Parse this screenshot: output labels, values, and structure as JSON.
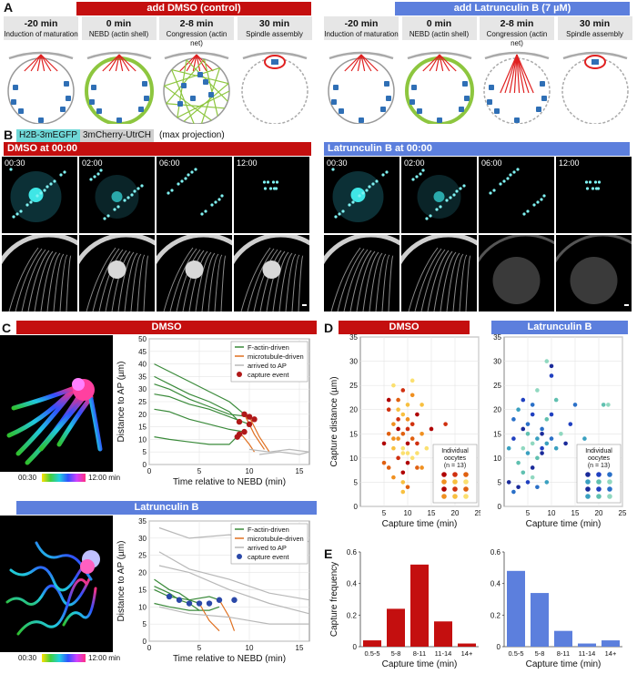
{
  "panel_letters": {
    "a": "A",
    "b": "B",
    "c": "C",
    "d": "D",
    "e": "E"
  },
  "colors": {
    "dmso": "#c40f0f",
    "latb": "#5c7fdd",
    "actin": "#8dc63f",
    "chrom": "#2f6fb5",
    "spindle": "#e02020"
  },
  "panel_a": {
    "dmso_header": "add DMSO (control)",
    "latb_header": "add Latrunculin B (7 µM)",
    "stages": [
      {
        "time": "-20 min",
        "desc": "Induction of maturation"
      },
      {
        "time": "0 min",
        "desc": "NEBD (actin shell)"
      },
      {
        "time": "2-8 min",
        "desc": "Congression (actin net)"
      },
      {
        "time": "30 min",
        "desc": "Spindle assembly"
      }
    ]
  },
  "panel_b": {
    "label_h2b": "H2B-3mEGFP",
    "label_utrch": "3mCherry-UtrCH",
    "label_proj": "(max projection)",
    "dmso_title": "DMSO at 00:00",
    "latb_title": "Latrunculin B at 00:00",
    "timepoints": [
      "00:30",
      "02:00",
      "06:00",
      "12:00"
    ]
  },
  "panel_c": {
    "dmso_title": "DMSO",
    "latb_title": "Latrunculin B",
    "colorbar_start": "00:30",
    "colorbar_end": "12:00 min",
    "xlabel": "Time relative to NEBD (min)",
    "ylabel": "Distance to AP (µm)",
    "legend": [
      "F-actin-driven",
      "microtubule-driven",
      "arrived to AP",
      "capture event"
    ]
  },
  "panel_d": {
    "dmso_title": "DMSO",
    "latb_title": "Latrunculin B",
    "xlabel": "Capture time (min)",
    "ylabel": "Capture distance (µm)",
    "legend_title": "Individual oocytes",
    "legend_n": "(n = 13)"
  },
  "panel_e": {
    "xlabel": "Capture time (min)",
    "ylabel": "Capture frequency"
  },
  "chart_data": [
    {
      "type": "line",
      "title": "DMSO",
      "xlabel": "Time relative to NEBD (min)",
      "ylabel": "Distance to AP (µm)",
      "xlim": [
        0,
        16
      ],
      "ylim": [
        0,
        50
      ],
      "xticks": [
        0,
        5,
        10,
        15
      ],
      "yticks": [
        0,
        5,
        10,
        15,
        20,
        25,
        30,
        35,
        40,
        45,
        50
      ],
      "series": [
        {
          "name": "F-actin-driven",
          "x": [
            0.5,
            2,
            4,
            6,
            8,
            9.5
          ],
          "y": [
            40,
            37,
            33,
            29,
            25,
            20
          ]
        },
        {
          "name": "F-actin-driven",
          "x": [
            0.5,
            2,
            4,
            6,
            8,
            9
          ],
          "y": [
            35,
            32,
            28,
            25,
            21,
            17
          ]
        },
        {
          "name": "F-actin-driven",
          "x": [
            0.5,
            2,
            4,
            6,
            8,
            10
          ],
          "y": [
            32,
            30,
            26,
            23,
            20,
            19
          ]
        },
        {
          "name": "F-actin-driven",
          "x": [
            0.5,
            2,
            4,
            6,
            8,
            10
          ],
          "y": [
            28,
            27,
            24,
            22,
            19,
            16
          ]
        },
        {
          "name": "F-actin-driven",
          "x": [
            0.5,
            2,
            4,
            6,
            8,
            9.5
          ],
          "y": [
            22,
            21,
            18,
            16,
            14,
            13
          ]
        },
        {
          "name": "F-actin-driven",
          "x": [
            0.5,
            2,
            4,
            6,
            8,
            9
          ],
          "y": [
            11,
            10,
            9,
            8,
            8,
            12
          ]
        },
        {
          "name": "microtubule-driven",
          "x": [
            9.5,
            10.5,
            11.5
          ],
          "y": [
            20,
            12,
            6
          ]
        },
        {
          "name": "microtubule-driven",
          "x": [
            10,
            11,
            12
          ],
          "y": [
            19,
            11,
            5
          ]
        },
        {
          "name": "microtubule-driven",
          "x": [
            9,
            10,
            10.5
          ],
          "y": [
            13,
            8,
            5
          ]
        },
        {
          "name": "arrived to AP",
          "x": [
            10,
            12,
            14,
            16
          ],
          "y": [
            6,
            5,
            6,
            5
          ]
        },
        {
          "name": "arrived to AP",
          "x": [
            11,
            13,
            15,
            16
          ],
          "y": [
            4,
            5,
            4,
            5
          ]
        }
      ],
      "points": {
        "name": "capture event",
        "x": [
          9.5,
          9,
          10,
          10,
          9.5,
          9,
          8.8,
          10.5
        ],
        "y": [
          20,
          17,
          19,
          16,
          13,
          12,
          11,
          18
        ]
      }
    },
    {
      "type": "line",
      "title": "Latrunculin B",
      "xlabel": "Time relative to NEBD (min)",
      "ylabel": "Distance to AP (µm)",
      "xlim": [
        0,
        16
      ],
      "ylim": [
        0,
        35
      ],
      "xticks": [
        0,
        5,
        10,
        15
      ],
      "yticks": [
        0,
        5,
        10,
        15,
        20,
        25,
        30,
        35
      ],
      "series": [
        {
          "name": "F-actin-driven",
          "x": [
            0.5,
            2,
            3,
            4,
            5
          ],
          "y": [
            18,
            15,
            14,
            12,
            11
          ]
        },
        {
          "name": "F-actin-driven",
          "x": [
            0.5,
            2,
            3,
            4,
            5
          ],
          "y": [
            16,
            14,
            12,
            11,
            9
          ]
        },
        {
          "name": "F-actin-driven",
          "x": [
            0.5,
            2,
            4,
            6,
            7
          ],
          "y": [
            15,
            13,
            12,
            13,
            12
          ]
        },
        {
          "name": "F-actin-driven",
          "x": [
            0.5,
            2,
            4,
            6,
            7
          ],
          "y": [
            11,
            10,
            9,
            9,
            10
          ]
        },
        {
          "name": "microtubule-driven",
          "x": [
            5,
            6,
            7
          ],
          "y": [
            11,
            6,
            3
          ]
        },
        {
          "name": "microtubule-driven",
          "x": [
            7,
            8,
            8.5
          ],
          "y": [
            12,
            7,
            3
          ]
        },
        {
          "name": "arrived to AP",
          "x": [
            1,
            4,
            8,
            12,
            16
          ],
          "y": [
            33,
            30,
            31,
            30,
            29
          ]
        },
        {
          "name": "arrived to AP",
          "x": [
            1,
            4,
            8,
            12,
            16
          ],
          "y": [
            26,
            21,
            18,
            14,
            12
          ]
        },
        {
          "name": "arrived to AP",
          "x": [
            1,
            4,
            8,
            12,
            16
          ],
          "y": [
            22,
            20,
            15,
            11,
            8
          ]
        },
        {
          "name": "arrived to AP",
          "x": [
            1,
            4,
            8,
            12,
            16
          ],
          "y": [
            10,
            8,
            7,
            5,
            5
          ]
        }
      ],
      "points": {
        "name": "capture event",
        "x": [
          2,
          3,
          4,
          5,
          6,
          7,
          8.5
        ],
        "y": [
          13,
          12,
          11,
          11,
          11,
          12,
          12
        ]
      }
    },
    {
      "type": "scatter",
      "title": "DMSO",
      "xlabel": "Capture time (min)",
      "ylabel": "Capture distance (µm)",
      "xlim": [
        0,
        25
      ],
      "ylim": [
        0,
        35
      ],
      "xticks": [
        5,
        10,
        15,
        20,
        25
      ],
      "yticks": [
        0,
        5,
        10,
        15,
        20,
        25,
        30,
        35
      ],
      "x": [
        5,
        6,
        6,
        7,
        7,
        7,
        8,
        8,
        8,
        8,
        9,
        9,
        9,
        9,
        9,
        10,
        10,
        10,
        10,
        10,
        11,
        11,
        11,
        11,
        12,
        12,
        12,
        13,
        13,
        14,
        15,
        18,
        6,
        7,
        8,
        9,
        10,
        11,
        5,
        7,
        9,
        12,
        6,
        8,
        10,
        13,
        9,
        11
      ],
      "y": [
        13,
        20,
        8,
        17,
        12,
        25,
        16,
        10,
        22,
        14,
        19,
        12,
        7,
        24,
        15,
        18,
        21,
        11,
        9,
        16,
        14,
        23,
        17,
        10,
        19,
        13,
        8,
        15,
        21,
        12,
        16,
        17,
        15,
        14,
        20,
        11,
        13,
        17,
        9,
        6,
        5,
        11,
        22,
        18,
        4,
        8,
        3,
        26
      ]
    },
    {
      "type": "scatter",
      "title": "Latrunculin B",
      "xlabel": "Capture time (min)",
      "ylabel": "Capture distance (µm)",
      "xlim": [
        0,
        25
      ],
      "ylim": [
        0,
        35
      ],
      "xticks": [
        5,
        10,
        15,
        20,
        25
      ],
      "yticks": [
        0,
        5,
        10,
        15,
        20,
        25,
        30,
        35
      ],
      "x": [
        1,
        2,
        2,
        3,
        3,
        4,
        4,
        4,
        5,
        5,
        5,
        6,
        6,
        6,
        6,
        7,
        7,
        7,
        8,
        8,
        8,
        9,
        9,
        9,
        10,
        10,
        10,
        11,
        11,
        12,
        13,
        14,
        15,
        17,
        21,
        22,
        3,
        5,
        7,
        9,
        4,
        6,
        8,
        10,
        2,
        1
      ],
      "y": [
        5,
        14,
        18,
        20,
        9,
        12,
        16,
        22,
        17,
        11,
        15,
        13,
        8,
        19,
        21,
        14,
        10,
        24,
        15,
        12,
        16,
        13,
        18,
        30,
        29,
        19,
        14,
        12,
        22,
        15,
        13,
        17,
        21,
        14,
        21,
        21,
        4,
        5,
        4,
        5,
        7,
        6,
        11,
        27,
        3,
        12
      ]
    },
    {
      "type": "bar",
      "title": "",
      "xlabel": "Capture time (min)",
      "ylabel": "Capture frequency",
      "categories": [
        "0.5-5",
        "5-8",
        "8-11",
        "11-14",
        "14+"
      ],
      "values": [
        0.04,
        0.24,
        0.52,
        0.16,
        0.02
      ],
      "ylim": [
        0,
        0.6
      ]
    },
    {
      "type": "bar",
      "title": "",
      "xlabel": "Capture time (min)",
      "ylabel": "",
      "categories": [
        "0.5-5",
        "5-8",
        "8-11",
        "11-14",
        "14+"
      ],
      "values": [
        0.48,
        0.34,
        0.1,
        0.02,
        0.04
      ],
      "ylim": [
        0,
        0.6
      ]
    }
  ]
}
